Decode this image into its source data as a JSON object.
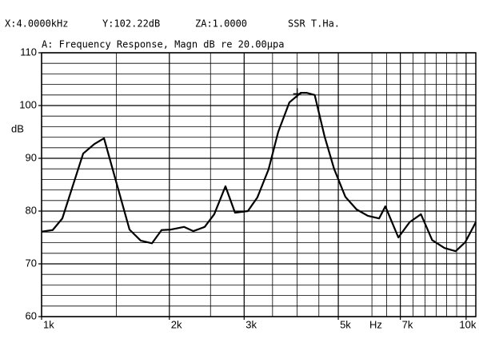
{
  "chart_data": {
    "type": "line",
    "header": [
      "X:4.0000kHz",
      "Y:102.22dB",
      "ZA:1.0000",
      "SSR T.Ha."
    ],
    "title": "A: Frequency Response, Magn dB re 20.00μpa",
    "ylabel": "dB",
    "xlabel": "Hz",
    "log_x": true,
    "grid": true,
    "color": "#000000",
    "xlim": [
      1000,
      10540
    ],
    "ylim": [
      60,
      110
    ],
    "yticks": [
      60,
      70,
      80,
      90,
      100,
      110
    ],
    "ygrid_step": 2,
    "xticks": [
      {
        "value": 1000,
        "label": "1k"
      },
      {
        "value": 2000,
        "label": "2k"
      },
      {
        "value": 3000,
        "label": "3k"
      },
      {
        "value": 5000,
        "label": "5k"
      },
      {
        "value": 7000,
        "label": "7k"
      },
      {
        "value": 10000,
        "label": "10k"
      }
    ],
    "xgrid": [
      1500,
      2500,
      3500,
      4000,
      4500,
      6000,
      6500,
      7500,
      8000,
      8500,
      9000,
      9500
    ],
    "cursor": {
      "x": 4000,
      "y": 102.22
    },
    "x": [
      1000,
      1062,
      1119,
      1253,
      1331,
      1403,
      1516,
      1611,
      1712,
      1820,
      1917,
      2018,
      2165,
      2278,
      2422,
      2551,
      2711,
      2855,
      3061,
      3224,
      3425,
      3609,
      3835,
      4075,
      4216,
      4399,
      4639,
      4887,
      5195,
      5522,
      5869,
      6238,
      6453,
      6925,
      7362,
      7827,
      8319,
      8892,
      9449,
      9953,
      10540
    ],
    "values": [
      76.1,
      76.4,
      78.6,
      90.9,
      92.7,
      93.8,
      84.1,
      76.5,
      74.4,
      73.9,
      76.4,
      76.5,
      77.0,
      76.2,
      77.0,
      79.4,
      84.7,
      79.7,
      80.0,
      82.6,
      87.9,
      95.0,
      100.6,
      102.4,
      102.4,
      102.0,
      94.2,
      88.0,
      82.7,
      80.3,
      79.1,
      78.6,
      80.9,
      75.0,
      77.9,
      79.4,
      74.5,
      73.0,
      72.4,
      74.1,
      77.9
    ]
  }
}
